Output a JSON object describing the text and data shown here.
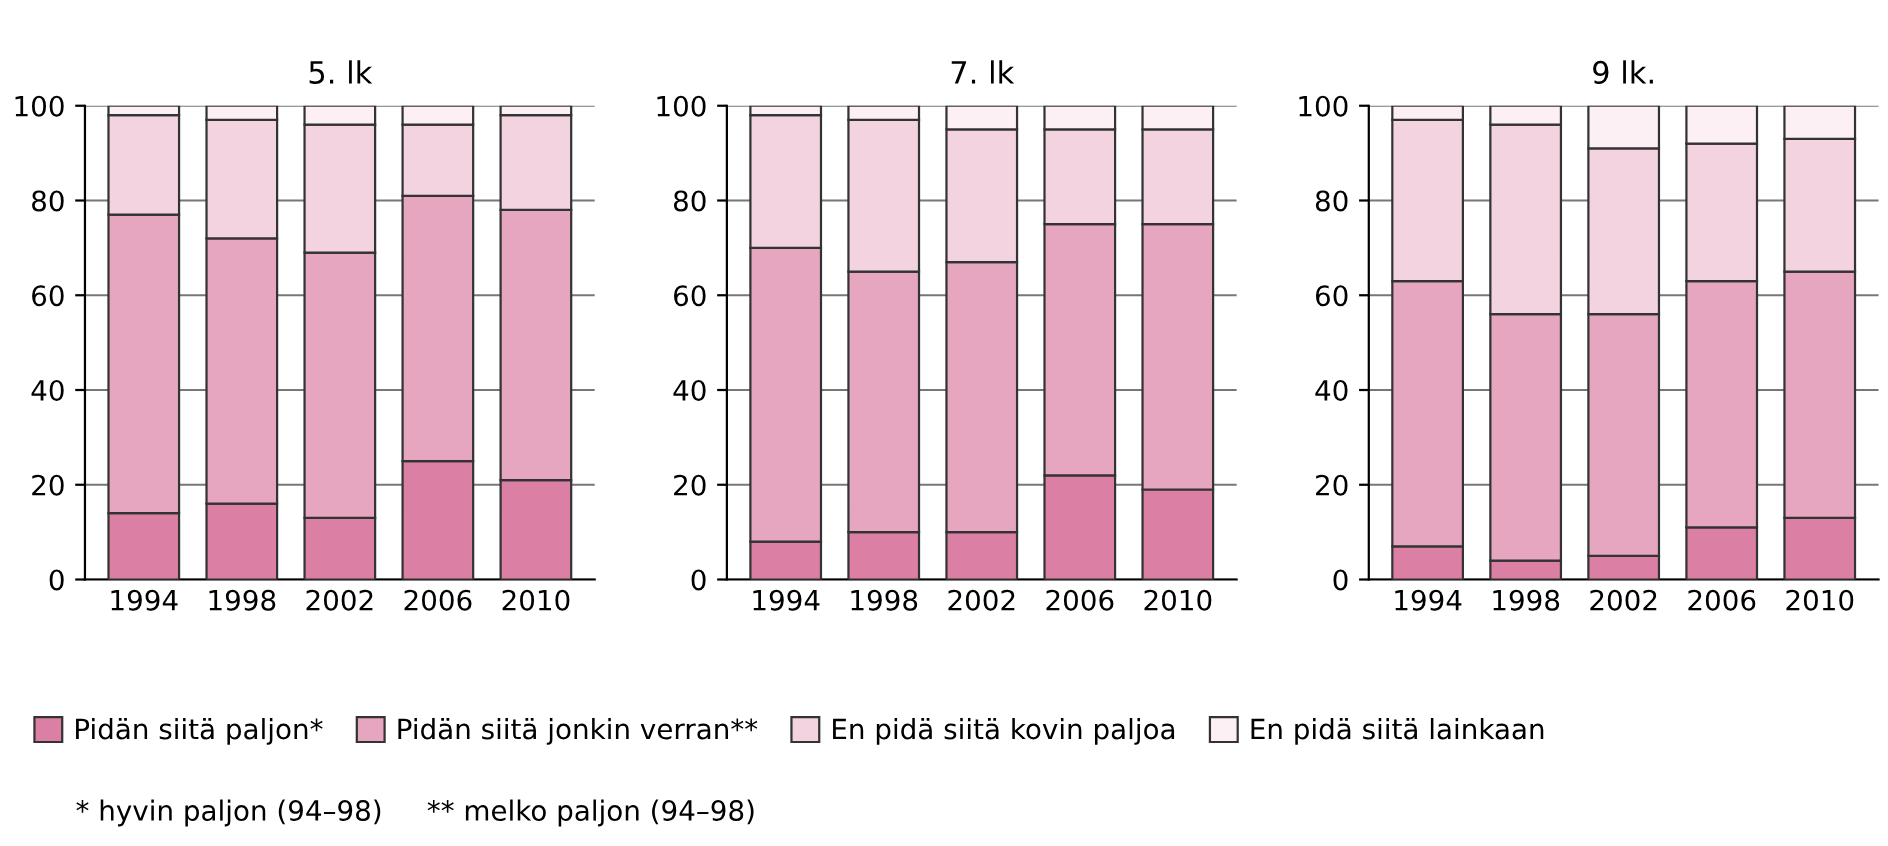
{
  "chart_data": [
    {
      "type": "bar",
      "title": "5. lk",
      "stacked": true,
      "categories": [
        "1994",
        "1998",
        "2002",
        "2006",
        "2010"
      ],
      "ylim": [
        0,
        100
      ],
      "yticks": [
        0,
        20,
        40,
        60,
        80,
        100
      ],
      "grid": "y",
      "legend": "bottom",
      "series": [
        {
          "name": "Pidän siitä paljon*",
          "color": "#db7fa4",
          "values": [
            14,
            16,
            13,
            25,
            21
          ]
        },
        {
          "name": "Pidän siitä jonkin verran**",
          "color": "#e6a6c0",
          "values": [
            63,
            56,
            56,
            56,
            57
          ]
        },
        {
          "name": "En pidä siitä kovin paljoa",
          "color": "#f2d3df",
          "values": [
            21,
            25,
            27,
            15,
            20
          ]
        },
        {
          "name": "En pidä siitä lainkaan",
          "color": "#fcf0f4",
          "values": [
            2,
            3,
            4,
            4,
            2
          ]
        }
      ],
      "annotations": [
        "* hyvin paljon (94–98)     ** melko paljon (94–98)"
      ]
    },
    {
      "type": "bar",
      "title": "7. lk",
      "stacked": true,
      "categories": [
        "1994",
        "1998",
        "2002",
        "2006",
        "2010"
      ],
      "ylim": [
        0,
        100
      ],
      "yticks": [
        0,
        20,
        40,
        60,
        80,
        100
      ],
      "grid": "y",
      "series": [
        {
          "color": "#db7fa4",
          "values": [
            8,
            10,
            10,
            22,
            19
          ]
        },
        {
          "color": "#e6a6c0",
          "values": [
            62,
            55,
            57,
            53,
            56
          ]
        },
        {
          "color": "#f2d3df",
          "values": [
            28,
            32,
            28,
            20,
            20
          ]
        },
        {
          "color": "#fcf0f4",
          "values": [
            2,
            3,
            5,
            5,
            5
          ]
        }
      ]
    },
    {
      "type": "bar",
      "title": "9 lk.",
      "stacked": true,
      "categories": [
        "1994",
        "1998",
        "2002",
        "2006",
        "2010"
      ],
      "ylim": [
        0,
        100
      ],
      "yticks": [
        0,
        20,
        40,
        60,
        80,
        100
      ],
      "grid": "y",
      "series": [
        {
          "color": "#db7fa4",
          "values": [
            7,
            4,
            5,
            11,
            13
          ]
        },
        {
          "color": "#e6a6c0",
          "values": [
            56,
            52,
            51,
            52,
            52
          ]
        },
        {
          "color": "#f2d3df",
          "values": [
            34,
            40,
            35,
            29,
            28
          ]
        },
        {
          "color": "#fcf0f4",
          "values": [
            3,
            4,
            9,
            8,
            7
          ]
        }
      ]
    }
  ]
}
